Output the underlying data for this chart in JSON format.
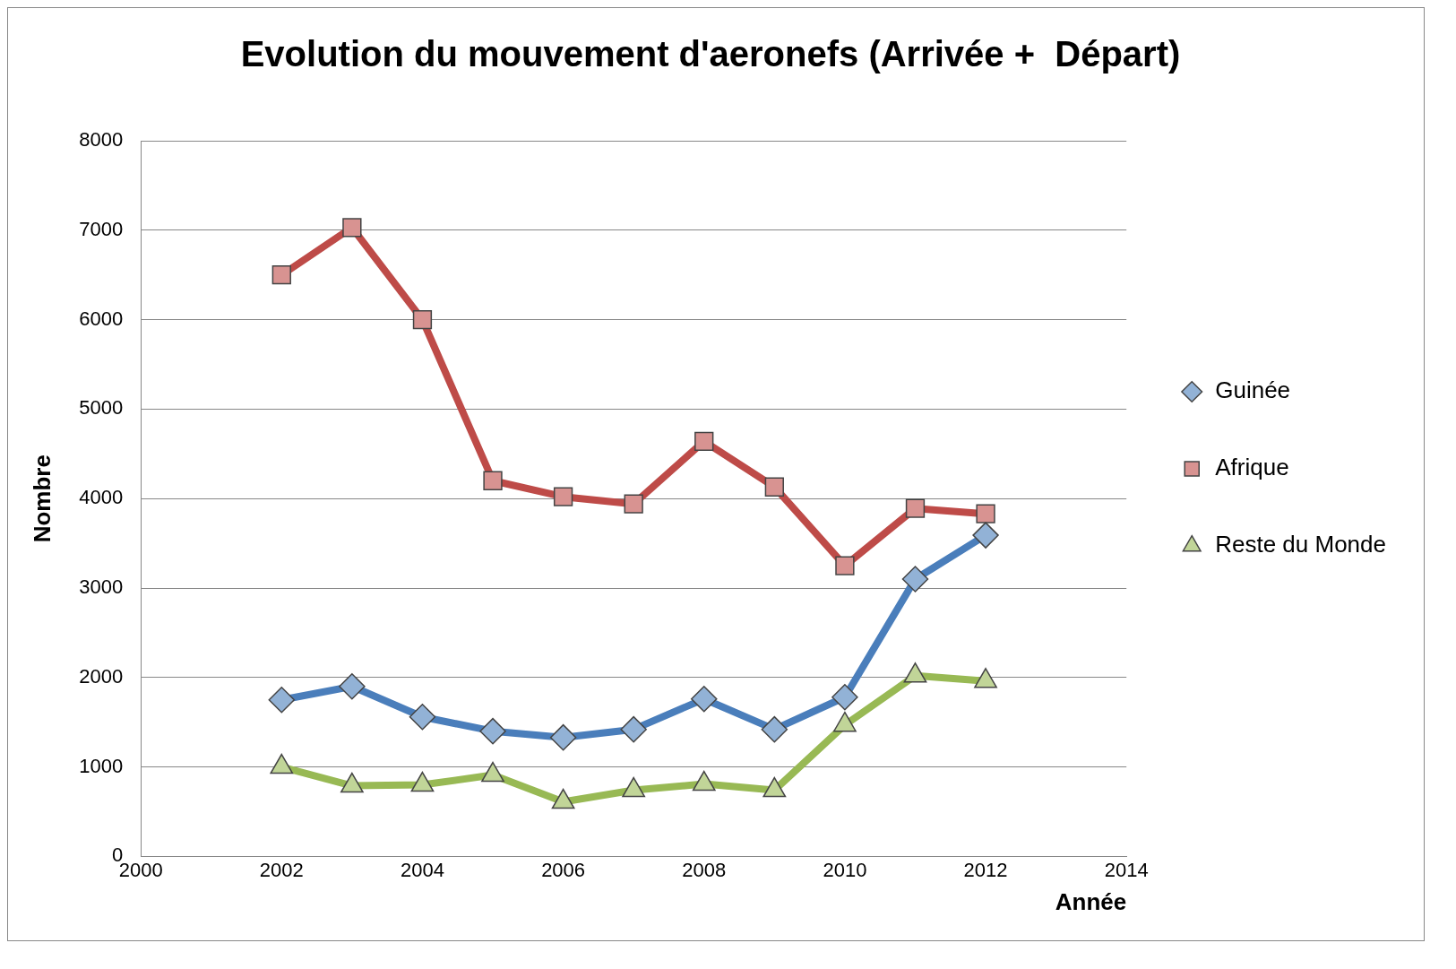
{
  "chart_data": {
    "type": "line",
    "title": "Evolution du mouvement d'aeronefs (Arrivée +  Départ)",
    "xlabel": "Année",
    "ylabel": "Nombre",
    "x": [
      2002,
      2003,
      2004,
      2005,
      2006,
      2007,
      2008,
      2009,
      2010,
      2011,
      2012
    ],
    "series": [
      {
        "name": "Guinée",
        "color": "#4a7ebb",
        "marker": "diamond",
        "values": [
          1750,
          1900,
          1560,
          1400,
          1330,
          1420,
          1760,
          1420,
          1780,
          3100,
          3590
        ]
      },
      {
        "name": "Afrique",
        "color": "#be4b48",
        "marker": "square",
        "values": [
          6500,
          7030,
          6000,
          4200,
          4020,
          3940,
          4640,
          4130,
          3250,
          3890,
          3830
        ]
      },
      {
        "name": "Reste du Monde",
        "color": "#98b954",
        "marker": "triangle",
        "values": [
          1000,
          790,
          800,
          910,
          610,
          740,
          810,
          740,
          1470,
          2020,
          1960
        ]
      }
    ],
    "xlim": [
      2000,
      2014
    ],
    "xticks": [
      2000,
      2002,
      2004,
      2006,
      2008,
      2010,
      2012,
      2014
    ],
    "ylim": [
      0,
      8000
    ],
    "yticks": [
      0,
      1000,
      2000,
      3000,
      4000,
      5000,
      6000,
      7000,
      8000
    ],
    "grid": "y",
    "legend": "right",
    "line_style": "solid"
  }
}
